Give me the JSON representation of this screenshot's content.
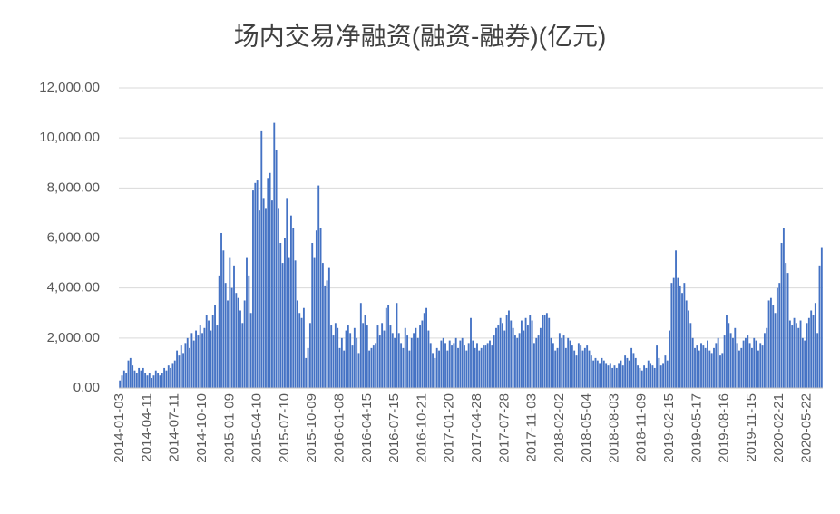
{
  "chart_data": {
    "type": "bar",
    "title": "场内交易净融资(融资-融券)(亿元)",
    "categories": [
      "2014-01-03",
      null,
      null,
      null,
      null,
      null,
      null,
      null,
      null,
      null,
      null,
      null,
      null,
      "2014-04-11",
      null,
      null,
      null,
      null,
      null,
      null,
      null,
      null,
      null,
      null,
      null,
      null,
      "2014-07-11",
      null,
      null,
      null,
      null,
      null,
      null,
      null,
      null,
      null,
      null,
      null,
      null,
      "2014-10-10",
      null,
      null,
      null,
      null,
      null,
      null,
      null,
      null,
      null,
      null,
      null,
      null,
      "2015-01-09",
      null,
      null,
      null,
      null,
      null,
      null,
      null,
      null,
      null,
      null,
      null,
      null,
      "2015-04-10",
      null,
      null,
      null,
      null,
      null,
      null,
      null,
      null,
      null,
      null,
      null,
      null,
      "2015-07-10",
      null,
      null,
      null,
      null,
      null,
      null,
      null,
      null,
      null,
      null,
      null,
      null,
      "2015-10-09",
      null,
      null,
      null,
      null,
      null,
      null,
      null,
      null,
      null,
      null,
      null,
      null,
      "2016-01-08",
      null,
      null,
      null,
      null,
      null,
      null,
      null,
      null,
      null,
      null,
      null,
      null,
      "2016-04-15",
      null,
      null,
      null,
      null,
      null,
      null,
      null,
      null,
      null,
      null,
      null,
      null,
      "2016-07-15",
      null,
      null,
      null,
      null,
      null,
      null,
      null,
      null,
      null,
      null,
      null,
      null,
      "2016-10-21",
      null,
      null,
      null,
      null,
      null,
      null,
      null,
      null,
      null,
      null,
      null,
      null,
      "2017-01-20",
      null,
      null,
      null,
      null,
      null,
      null,
      null,
      null,
      null,
      null,
      null,
      null,
      "2017-04-28",
      null,
      null,
      null,
      null,
      null,
      null,
      null,
      null,
      null,
      null,
      null,
      null,
      "2017-07-28",
      null,
      null,
      null,
      null,
      null,
      null,
      null,
      null,
      null,
      null,
      null,
      null,
      "2017-11-03",
      null,
      null,
      null,
      null,
      null,
      null,
      null,
      null,
      null,
      null,
      null,
      null,
      "2018-02-02",
      null,
      null,
      null,
      null,
      null,
      null,
      null,
      null,
      null,
      null,
      null,
      null,
      "2018-05-04",
      null,
      null,
      null,
      null,
      null,
      null,
      null,
      null,
      null,
      null,
      null,
      null,
      "2018-08-03",
      null,
      null,
      null,
      null,
      null,
      null,
      null,
      null,
      null,
      null,
      null,
      null,
      "2018-11-09",
      null,
      null,
      null,
      null,
      null,
      null,
      null,
      null,
      null,
      null,
      null,
      null,
      "2019-02-15",
      null,
      null,
      null,
      null,
      null,
      null,
      null,
      null,
      null,
      null,
      null,
      null,
      "2019-05-17",
      null,
      null,
      null,
      null,
      null,
      null,
      null,
      null,
      null,
      null,
      null,
      null,
      "2019-08-16",
      null,
      null,
      null,
      null,
      null,
      null,
      null,
      null,
      null,
      null,
      null,
      null,
      "2019-11-15",
      null,
      null,
      null,
      null,
      null,
      null,
      null,
      null,
      null,
      null,
      null,
      null,
      "2020-02-21",
      null,
      null,
      null,
      null,
      null,
      null,
      null,
      null,
      null,
      null,
      null,
      null,
      "2020-05-22",
      null,
      null,
      null,
      null,
      null,
      null,
      null
    ],
    "values": [
      300,
      500,
      700,
      600,
      1100,
      1200,
      900,
      700,
      600,
      800,
      700,
      800,
      600,
      500,
      600,
      400,
      500,
      700,
      600,
      500,
      600,
      800,
      700,
      900,
      800,
      1000,
      1100,
      1500,
      1300,
      1700,
      1400,
      1800,
      2000,
      1600,
      2200,
      1900,
      2300,
      2100,
      2500,
      2200,
      2400,
      2900,
      2700,
      2300,
      2900,
      3300,
      2500,
      4500,
      6200,
      5500,
      4200,
      3500,
      5200,
      4000,
      4900,
      3800,
      3600,
      3100,
      2600,
      3500,
      5200,
      4500,
      3000,
      7900,
      8200,
      8300,
      7100,
      10300,
      7600,
      7200,
      8400,
      8600,
      7500,
      10600,
      9500,
      7200,
      5800,
      5000,
      6000,
      7600,
      5200,
      6900,
      6400,
      5100,
      3500,
      3000,
      2800,
      3200,
      1200,
      1600,
      2600,
      5800,
      5200,
      6300,
      8100,
      6400,
      5000,
      4100,
      4300,
      4800,
      2500,
      2100,
      2600,
      2400,
      1600,
      2000,
      1500,
      2300,
      2500,
      2200,
      1700,
      2400,
      2000,
      1400,
      3400,
      2600,
      2900,
      2500,
      1500,
      1600,
      1700,
      1800,
      2500,
      2100,
      2600,
      2300,
      3200,
      3300,
      2500,
      2200,
      2000,
      3400,
      2200,
      1800,
      1600,
      2400,
      2100,
      1500,
      2000,
      2200,
      2400,
      2000,
      2500,
      2700,
      3000,
      3200,
      2300,
      1800,
      1400,
      1200,
      1600,
      1500,
      1900,
      2000,
      1800,
      1500,
      1900,
      1700,
      1800,
      2000,
      1600,
      1900,
      2000,
      1700,
      1500,
      1800,
      2800,
      1900,
      1600,
      1800,
      1500,
      1600,
      1700,
      1700,
      1800,
      1900,
      1700,
      2100,
      2400,
      2500,
      2800,
      2600,
      2300,
      2900,
      3100,
      2700,
      2400,
      2100,
      2000,
      2200,
      2700,
      2300,
      2800,
      2500,
      2900,
      2700,
      1800,
      2000,
      2100,
      2400,
      2900,
      2900,
      3000,
      2800,
      2000,
      1800,
      1500,
      1600,
      2200,
      2000,
      2100,
      1600,
      2000,
      1900,
      1700,
      1500,
      1300,
      1800,
      1700,
      1500,
      1600,
      1700,
      1500,
      1300,
      1100,
      1200,
      1100,
      1000,
      1200,
      1100,
      1000,
      900,
      1000,
      800,
      900,
      800,
      1000,
      1100,
      900,
      1300,
      1200,
      1100,
      1600,
      1400,
      1200,
      900,
      800,
      700,
      900,
      800,
      1100,
      1000,
      900,
      800,
      1700,
      1200,
      900,
      1000,
      1300,
      1100,
      2300,
      4200,
      4400,
      5500,
      4400,
      4100,
      3800,
      4200,
      3500,
      3100,
      2600,
      2000,
      1600,
      1700,
      1500,
      1800,
      1700,
      1600,
      1900,
      1500,
      1400,
      1600,
      1800,
      2000,
      1300,
      1400,
      2100,
      2900,
      2600,
      2200,
      2000,
      2400,
      1800,
      1500,
      1600,
      1900,
      2000,
      2100,
      1800,
      1600,
      2000,
      1900,
      1500,
      1800,
      1700,
      2200,
      2400,
      3500,
      3600,
      3300,
      3000,
      4000,
      4200,
      5800,
      6400,
      5000,
      4600,
      2700,
      2500,
      2800,
      2600,
      2400,
      2700,
      2000,
      1900,
      2600,
      2800,
      3100,
      2900,
      3400,
      2200,
      4900,
      5600
    ],
    "color": "#4472c4",
    "ylim": [
      0,
      12000
    ],
    "yticks": [
      {
        "value": 0,
        "label": "0.00"
      },
      {
        "value": 2000,
        "label": "2,000.00"
      },
      {
        "value": 4000,
        "label": "4,000.00"
      },
      {
        "value": 6000,
        "label": "6,000.00"
      },
      {
        "value": 8000,
        "label": "8,000.00"
      },
      {
        "value": 10000,
        "label": "10,000.00"
      },
      {
        "value": 12000,
        "label": "12,000.00"
      }
    ],
    "grid": true
  }
}
